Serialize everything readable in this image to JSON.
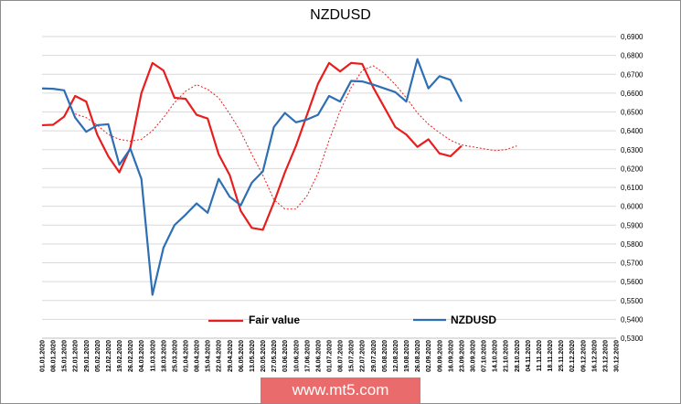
{
  "chart_data": {
    "type": "line",
    "title": "NZDUSD",
    "ylim": [
      0.53,
      0.69
    ],
    "yticks": [
      "0,5300",
      "0,5400",
      "0,5500",
      "0,5600",
      "0,5700",
      "0,5800",
      "0,5900",
      "0,6000",
      "0,6100",
      "0,6200",
      "0,6300",
      "0,6400",
      "0,6500",
      "0,6600",
      "0,6700",
      "0,6800",
      "0,6900"
    ],
    "x_labels": [
      "01.01.2020",
      "08.01.2020",
      "15.01.2020",
      "22.01.2020",
      "29.01.2020",
      "05.02.2020",
      "12.02.2020",
      "19.02.2020",
      "26.02.2020",
      "04.03.2020",
      "11.03.2020",
      "18.03.2020",
      "25.03.2020",
      "01.04.2020",
      "08.04.2020",
      "15.04.2020",
      "22.04.2020",
      "29.04.2020",
      "06.05.2020",
      "13.05.2020",
      "20.05.2020",
      "27.05.2020",
      "03.06.2020",
      "10.06.2020",
      "17.06.2020",
      "24.06.2020",
      "01.07.2020",
      "08.07.2020",
      "15.07.2020",
      "22.07.2020",
      "29.07.2020",
      "05.08.2020",
      "12.08.2020",
      "19.08.2020",
      "26.08.2020",
      "02.09.2020",
      "09.09.2020",
      "16.09.2020",
      "23.09.2020",
      "30.09.2020",
      "07.10.2020",
      "14.10.2020",
      "21.10.2020",
      "28.10.2020",
      "04.11.2020",
      "11.11.2020",
      "18.11.2020",
      "25.11.2020",
      "02.12.2020",
      "09.12.2020",
      "16.12.2020",
      "23.12.2020",
      "30.12.2020"
    ],
    "series": [
      {
        "name": "Fair value",
        "color": "#e81e1e",
        "style": "solid",
        "values": [
          0.643,
          0.6432,
          0.6475,
          0.6585,
          0.6555,
          0.638,
          0.6265,
          0.618,
          0.631,
          0.66,
          0.676,
          0.672,
          0.6575,
          0.657,
          0.6485,
          0.6465,
          0.6275,
          0.6165,
          0.5975,
          0.5885,
          0.5875,
          0.602,
          0.618,
          0.632,
          0.6485,
          0.665,
          0.676,
          0.6715,
          0.676,
          0.6755,
          0.663,
          0.6525,
          0.642,
          0.638,
          0.6315,
          0.6355,
          0.628,
          0.6265,
          0.632
        ]
      },
      {
        "name": "",
        "color": "#e81e1e",
        "style": "dotted",
        "values": [
          null,
          null,
          null,
          0.649,
          0.647,
          0.643,
          0.638,
          0.6355,
          0.6345,
          0.6355,
          0.64,
          0.647,
          0.655,
          0.661,
          0.6645,
          0.662,
          0.6575,
          0.649,
          0.6395,
          0.6275,
          0.6165,
          0.6035,
          0.5985,
          0.5985,
          0.6055,
          0.6175,
          0.635,
          0.6505,
          0.663,
          0.672,
          0.6745,
          0.6705,
          0.6645,
          0.6575,
          0.6495,
          0.6435,
          0.639,
          0.635,
          0.6325,
          0.6315,
          0.6305,
          0.6295,
          0.63,
          0.632
        ]
      },
      {
        "name": "NZDUSD",
        "color": "#2e6fb3",
        "style": "solid",
        "values": [
          0.6625,
          0.6623,
          0.6615,
          0.647,
          0.6395,
          0.643,
          0.6435,
          0.622,
          0.6305,
          0.6145,
          0.553,
          0.578,
          0.59,
          0.5955,
          0.6015,
          0.5965,
          0.6145,
          0.605,
          0.6005,
          0.6125,
          0.6185,
          0.642,
          0.6495,
          0.6445,
          0.646,
          0.6485,
          0.6585,
          0.6555,
          0.6665,
          0.6662,
          0.6645,
          0.6625,
          0.6605,
          0.6555,
          0.678,
          0.6625,
          0.669,
          0.667,
          0.6555
        ]
      }
    ],
    "legend": [
      {
        "label": "Fair value",
        "color": "#e81e1e"
      },
      {
        "label": "NZDUSD",
        "color": "#2e6fb3"
      }
    ],
    "grid": true,
    "legend_position": "bottom-inside"
  },
  "watermark": "www.mt5.com"
}
